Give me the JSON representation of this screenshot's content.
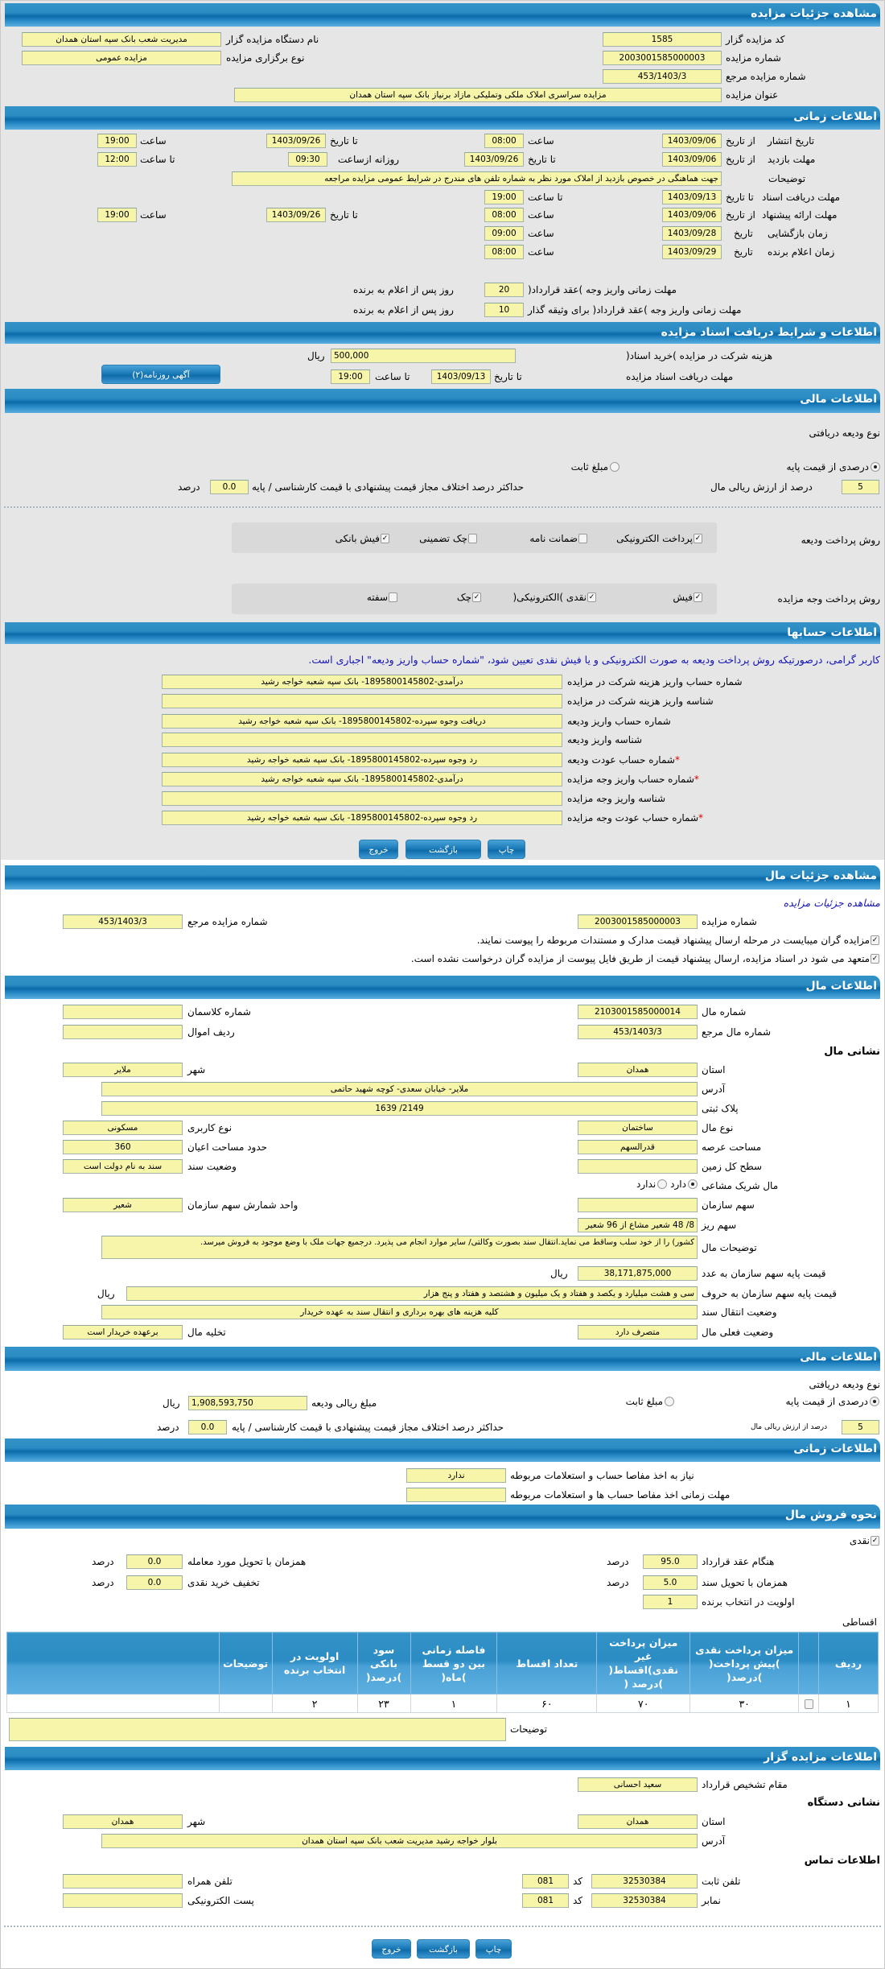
{
  "colors": {
    "header": "#0b6aa9",
    "field": "#f6f5a9",
    "notice": "#1414b4",
    "required": "#dd0000"
  },
  "auction": {
    "header": "مشاهده جزئیات مزایده",
    "code": {
      "label": "کد مزایده گزار",
      "value": "1585"
    },
    "number": {
      "label": "شماره مزایده",
      "value": "2003001585000003"
    },
    "ref": {
      "label": "شماره مزایده مرجع",
      "value": "453/1403/3"
    },
    "title": {
      "label": "عنوان مزایده",
      "value": "مزایده سراسری املاک ملکی وتملیکی مازاد برنیاز بانک سپه استان همدان"
    },
    "org": {
      "label": "نام دستگاه مزایده گزار",
      "value": "مدیریت شعب بانک سپه استان همدان"
    },
    "type": {
      "label": "نوع برگزاری مزایده",
      "value": "مزایده عمومی"
    }
  },
  "time": {
    "header": "اطلاعات زمانی",
    "publish": {
      "label": "تاریخ انتشار",
      "from": "از تاریخ",
      "from_date": "1403/09/06",
      "time": "ساعت",
      "from_time": "08:00",
      "to": "تا تاریخ",
      "to_date": "1403/09/26",
      "to_time_label": "ساعت",
      "to_time": "19:00"
    },
    "visit": {
      "label": "مهلت بازدید",
      "from": "از تاریخ",
      "from_date": "1403/09/06",
      "to": "تا تاریخ",
      "to_date": "1403/09/26",
      "daily": "روزانه ازساعت",
      "daily_from": "09:30",
      "to_time_label": "تا ساعت",
      "to_time": "12:00"
    },
    "desc": {
      "label": "توضیحات",
      "value": "جهت هماهنگی در خصوص بازدید از املاک مورد نظر به شماره تلفن های  مندرج در شرایط عمومی مزایده مراجعه"
    },
    "docs": {
      "label": "مهلت دریافت اسناد",
      "to": "تا تاریخ",
      "date": "1403/09/13",
      "time_label": "تا ساعت",
      "time": "19:00"
    },
    "offer": {
      "label": "مهلت ارائه پیشنهاد",
      "from": "از تاریخ",
      "from_date": "1403/09/06",
      "time": "ساعت",
      "from_time": "08:00",
      "to": "تا تاریخ",
      "to_date": "1403/09/26",
      "to_time_label": "ساعت",
      "to_time": "19:00"
    },
    "opening": {
      "label": "زمان بازگشایی",
      "date_label": "تاریخ",
      "date": "1403/09/28",
      "time_label": "ساعت",
      "time": "09:00"
    },
    "winner": {
      "label": "زمان اعلام برنده",
      "date_label": "تاریخ",
      "date": "1403/09/29",
      "time_label": "ساعت",
      "time": "08:00"
    },
    "pay_deadline": {
      "label": "مهلت زمانی واریز وجه )عقد قرارداد(",
      "value": "20",
      "unit": "روز پس از اعلام به برنده"
    },
    "pay_deadline_collateral": {
      "label": "مهلت زمانی واریز وجه )عقد قرارداد( برای وثیقه گذار",
      "value": "10",
      "unit": "روز پس از اعلام به برنده"
    }
  },
  "documents": {
    "header": "اطلاعات و شرایط دریافت اسناد مزایده",
    "fee": {
      "label": "هزینه شرکت در مزایده )خرید اسناد(",
      "value": "500,000",
      "unit": "ریال"
    },
    "deadline": {
      "label": "مهلت دریافت اسناد مزایده",
      "to": "تا تاریخ",
      "date": "1403/09/13",
      "time_label": "تا ساعت",
      "time": "19:00"
    },
    "ad_button": "آگهی روزنامه(۲)"
  },
  "finance": {
    "header": "اطلاعات مالی",
    "deposit_type": "نوع ودیعه دریافتی",
    "radio_percent": "درصدی از قیمت پایه",
    "radio_fixed": "مبلغ ثابت",
    "selected": "درصدی از قیمت پایه",
    "percent": {
      "value": "5",
      "label": "درصد از ارزش ریالی مال"
    },
    "max_diff": {
      "label": "حداکثر درصد اختلاف مجاز قیمت پیشنهادی با قیمت کارشناسی / پایه",
      "value": "0.0",
      "unit": "درصد"
    },
    "deposit_methods": {
      "label": "روش پرداخت ودیعه",
      "options": [
        {
          "label": "پرداخت الکترونیکی",
          "checked": true
        },
        {
          "label": "ضمانت نامه",
          "checked": false
        },
        {
          "label": "چک تضمینی",
          "checked": false
        },
        {
          "label": "فیش بانکی",
          "checked": true
        }
      ]
    },
    "payment_methods": {
      "label": "روش پرداخت وجه مزایده",
      "options": [
        {
          "label": "فیش",
          "checked": true
        },
        {
          "label": "نقدی )الکترونیکی(",
          "checked": true
        },
        {
          "label": "چک",
          "checked": true
        },
        {
          "label": "سفته",
          "checked": false
        }
      ]
    }
  },
  "accounts": {
    "header": "اطلاعات حسابها",
    "notice": "کاربر گرامی، درصورتیکه روش پرداخت ودیعه به صورت الکترونیکی و یا فیش نقدی تعیین شود، \"شماره حساب واریز ودیعه\" اجباری است.",
    "rows": [
      {
        "label": "شماره حساب واریز هزینه شرکت در مزایده",
        "value": "درآمدی-1895800145802- بانک سپه شعبه خواجه رشید",
        "required": ""
      },
      {
        "label": "شناسه واریز هزینه شرکت در مزایده",
        "value": "",
        "required": ""
      },
      {
        "label": "شماره حساب واریز ودیعه",
        "value": "دریافت وجوه سپرده-1895800145802- بانک سپه شعبه خواجه رشید",
        "required": ""
      },
      {
        "label": "شناسه واریز ودیعه",
        "value": "",
        "required": ""
      },
      {
        "label": "شماره حساب عودت ودیعه",
        "value": "رد وجوه سپرده-1895800145802- بانک سپه شعبه خواجه رشید",
        "required": "*"
      },
      {
        "label": "شماره حساب واریز وجه مزایده",
        "value": "درآمدی-1895800145802- بانک سپه شعبه خواجه رشید",
        "required": "*"
      },
      {
        "label": "شناسه واریز وجه مزایده",
        "value": "",
        "required": ""
      },
      {
        "label": "شماره حساب عودت وجه مزایده",
        "value": "رد وجوه سپرده-1895800145802- بانک سپه شعبه خواجه رشید",
        "required": "*"
      }
    ]
  },
  "buttons": {
    "print": "چاپ",
    "back": "بازگشت",
    "exit": "خروج"
  },
  "item": {
    "header": "مشاهده جزئیات مال",
    "link": "مشاهده جزئیات مزایده",
    "auction_number": {
      "label": "شماره مزایده",
      "value": "2003001585000003"
    },
    "auction_ref": {
      "label": "شماره مزایده مرجع",
      "value": "453/1403/3"
    },
    "check1": {
      "label": "مزایده گران میبایست در مرحله ارسال پیشنهاد قیمت مدارک و مستندات مربوطه را پیوست نمایند.",
      "checked": true
    },
    "check2": {
      "label": "متعهد می شود در اسناد مزایده، ارسال پیشنهاد قیمت از طریق فایل پیوست از مزایده گران درخواست نشده است.",
      "checked": true
    }
  },
  "property": {
    "header": "اطلاعات مال",
    "number": {
      "label": "شماره مال",
      "value": "2103001585000014"
    },
    "class_no": {
      "label": "شماره کلاسمان",
      "value": ""
    },
    "ref": {
      "label": "شماره مال مرجع",
      "value": "453/1403/3"
    },
    "row": {
      "label": "ردیف اموال",
      "value": ""
    },
    "address_title": "نشانی مال",
    "province": {
      "label": "استان",
      "value": "همدان"
    },
    "city": {
      "label": "شهر",
      "value": "ملایر"
    },
    "address": {
      "label": "آدرس",
      "value": "ملایر- خیابان سعدی- کوچه شهید حاتمی"
    },
    "plate": {
      "label": "پلاک ثبتی",
      "value": "1639 /2149"
    },
    "kind": {
      "label": "نوع مال",
      "value": "ساختمان"
    },
    "usage": {
      "label": "نوع کاربری",
      "value": "مسکونی"
    },
    "land_area": {
      "label": "مساحت عرصه",
      "value": "قدرالسهم"
    },
    "building_area": {
      "label": "حدود مساحت اعیان",
      "value": "360"
    },
    "total_land": {
      "label": "سطح کل زمین",
      "value": ""
    },
    "deed_status": {
      "label": "وضعیت سند",
      "value": "سند به نام دولت است"
    },
    "shared": {
      "label": "مال شریک مشاعی",
      "yes": "دارد",
      "no": "ندارد",
      "selected": "دارد"
    },
    "org_share": {
      "label": "سهم سازمان",
      "value": ""
    },
    "share_unit": {
      "label": "واحد شمارش سهم سازمان",
      "value": "شعیر"
    },
    "share_detail": {
      "label": "سهم ریز",
      "value": "8/ 48 شعیر مشاع از 96 شعیر"
    },
    "desc": {
      "label": "توضیحات مال",
      "value": "کشور) را از خود سلب وساقط می نماید.انتقال سند بصورت وکالتی/ سایر موارد انجام می پذیرد. درجمیع جهات ملک با وضع موجود به فروش میرسد."
    },
    "price_num": {
      "label": "قیمت پایه سهم سازمان به عدد",
      "value": "38,171,875,000",
      "unit": "ریال"
    },
    "price_words": {
      "label": "قیمت پایه سهم سازمان به حروف",
      "value": "سی و هشت میلیارد و یکصد و هفتاد و یک میلیون و هشتصد و هفتاد و پنج هزار",
      "unit": "ریال"
    },
    "transfer": {
      "label": "وضعیت انتقال سند",
      "value": "کلیه هزینه های بهره برداری و انتقال سند به عهده خریدار"
    },
    "current": {
      "label": "وضعیت فعلی مال",
      "value": "متصرف دارد"
    },
    "evacuation": {
      "label": "تخلیه مال",
      "value": "برعهده خریدار است"
    }
  },
  "finance2": {
    "header": "اطلاعات مالی",
    "deposit_type": "نوع ودیعه دریافتی",
    "radio_percent": "درصدی از قیمت پایه",
    "radio_fixed": "مبلغ ثابت",
    "selected": "درصدی از قیمت پایه",
    "amount": {
      "label": "مبلغ ریالی ودیعه",
      "value": "1,908,593,750",
      "unit": "ریال"
    },
    "percent": {
      "value": "5",
      "label": "درصد از ارزش ریالی مال"
    },
    "max_diff": {
      "label": "حداکثر درصد اختلاف مجاز قیمت پیشنهادی با قیمت کارشناسی / پایه",
      "value": "0.0",
      "unit": "درصد"
    }
  },
  "time2": {
    "header": "اطلاعات زمانی",
    "clearance": {
      "label": "نیاز به اخذ مفاصا حساب و استعلامات مربوطه",
      "value": "ندارد"
    },
    "clearance_deadline": {
      "label": "مهلت زمانی اخذ مفاصا حساب ها و استعلامات مربوطه",
      "value": ""
    }
  },
  "sale": {
    "header": "نحوه فروش مال",
    "cash": {
      "label": "نقدی",
      "checked": true
    },
    "on_contract": {
      "label": "هنگام عقد قرارداد",
      "value": "95.0",
      "unit": "درصد"
    },
    "on_deed": {
      "label": "همزمان با تحویل سند",
      "value": "5.0",
      "unit": "درصد"
    },
    "priority": {
      "label": "اولویت در انتخاب برنده",
      "value": "1"
    },
    "on_delivery": {
      "label": "همزمان با تحویل مورد معامله",
      "value": "0.0",
      "unit": "درصد"
    },
    "discount": {
      "label": "تخفیف خرید نقدی",
      "value": "0.0",
      "unit": "درصد"
    },
    "installment_label": "اقساطی",
    "table": {
      "columns": [
        "ردیف",
        "",
        "میزان پرداخت نقدی )پیش پرداخت( )درصد(",
        "میزان پرداخت غیر نقدی)اقساط( )درصد (",
        "تعداد اقساط",
        "فاصله زمانی بین دو قسط )ماه(",
        "سود بانکی )درصد(",
        "اولویت در انتخاب برنده",
        "توضیحات",
        ""
      ],
      "rows": [
        [
          "۱",
          "",
          "۳۰",
          "۷۰",
          "۶۰",
          "۱",
          "۲۳",
          "۲",
          "",
          ""
        ]
      ]
    },
    "notes": {
      "label": "توضیحات",
      "value": ""
    }
  },
  "auctioneer": {
    "header": "اطلاعات مزایده گزار",
    "authority": {
      "label": "مقام تشخیص قرارداد",
      "value": "سعید احسانی"
    },
    "address_title": "نشانی دستگاه",
    "province": {
      "label": "استان",
      "value": "همدان"
    },
    "city": {
      "label": "شهر",
      "value": "همدان"
    },
    "address": {
      "label": "آدرس",
      "value": "بلوار خواجه رشید مدیریت شعب بانک سپه استان همدان"
    },
    "contact_title": "اطلاعات تماس",
    "phone": {
      "label": "تلفن ثابت",
      "value": "32530384",
      "code_label": "کد",
      "code": "081"
    },
    "fax": {
      "label": "نمابر",
      "value": "32530384",
      "code_label": "کد",
      "code": "081"
    },
    "mobile": {
      "label": "تلفن همراه",
      "value": ""
    },
    "email": {
      "label": "پست الکترونیکی",
      "value": ""
    }
  }
}
